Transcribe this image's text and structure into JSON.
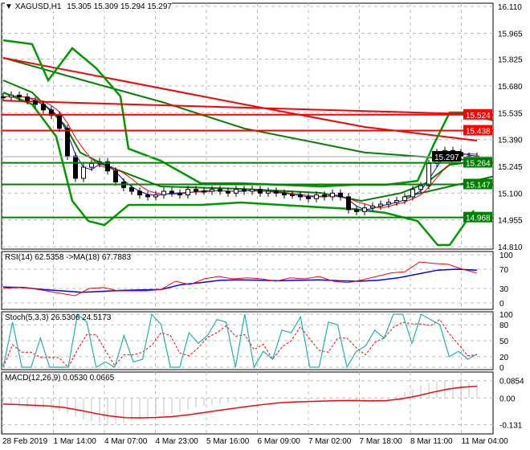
{
  "header": {
    "symbol": "XAGUSD,H1",
    "ohlc": "15.305 15.309 15.294 15.297"
  },
  "colors": {
    "bull": "#000000",
    "line_red": "#ff0000",
    "line_green": "#008000",
    "band_green": "#009900",
    "rsi_ma": "#0000ff",
    "stoch_main": "#20b2aa",
    "hist": "#c0c0c0"
  },
  "chart_data": [
    {
      "type": "candlestick",
      "ylim": [
        14.81,
        16.11
      ],
      "y_ticks": [
        "16.110",
        "15.965",
        "15.825",
        "15.680",
        "15.535",
        "15.390",
        "15.245",
        "15.100",
        "14.955",
        "14.810"
      ],
      "x_ticks": [
        "28 Feb 2019",
        "1 Mar 14:00",
        "4 Mar 07:00",
        "4 Mar 23:00",
        "5 Mar 16:00",
        "6 Mar 09:00",
        "7 Mar 02:00",
        "7 Mar 18:00",
        "8 Mar 11:00",
        "11 Mar 04:00"
      ],
      "closes": [
        15.62,
        15.63,
        15.62,
        15.6,
        15.58,
        15.55,
        15.52,
        15.45,
        15.3,
        15.18,
        15.24,
        15.26,
        15.27,
        15.22,
        15.16,
        15.13,
        15.11,
        15.09,
        15.08,
        15.09,
        15.11,
        15.1,
        15.09,
        15.12,
        15.11,
        15.11,
        15.12,
        15.11,
        15.1,
        15.12,
        15.11,
        15.12,
        15.1,
        15.11,
        15.1,
        15.09,
        15.09,
        15.08,
        15.07,
        15.09,
        15.08,
        15.1,
        15.08,
        15.01,
        15.0,
        15.02,
        15.03,
        15.04,
        15.05,
        15.06,
        15.08,
        15.12,
        15.14,
        15.26,
        15.32,
        15.33,
        15.32,
        15.3,
        15.3,
        15.297
      ],
      "current_price": "15.297",
      "levels": [
        {
          "value": "15.524",
          "color": "#ff0000"
        },
        {
          "value": "15.438",
          "color": "#ff0000"
        },
        {
          "value": "15.264",
          "color": "#008000"
        },
        {
          "value": "15.147",
          "color": "#008000"
        },
        {
          "value": "14.968",
          "color": "#008000"
        }
      ],
      "trendlines": [
        {
          "color": "#ff0000",
          "from": [
            0,
            15.6
          ],
          "to": [
            61,
            15.524
          ]
        },
        {
          "color": "#008000",
          "from": [
            50,
            15.08
          ],
          "to": [
            61,
            15.19
          ]
        }
      ],
      "ma_long_red": [
        [
          0,
          15.832
        ],
        [
          30,
          15.58
        ],
        [
          45,
          15.458
        ],
        [
          59,
          15.384
        ]
      ],
      "ma_long_green": [
        [
          0,
          15.832
        ],
        [
          10,
          15.71
        ],
        [
          20,
          15.59
        ],
        [
          30,
          15.45
        ],
        [
          45,
          15.32
        ],
        [
          59,
          15.275
        ]
      ],
      "bb_upper": [
        [
          0,
          15.927
        ],
        [
          3.6,
          15.906
        ],
        [
          5.6,
          15.71
        ],
        [
          8.6,
          15.884
        ],
        [
          11.6,
          15.775
        ],
        [
          14.6,
          15.623
        ],
        [
          15.6,
          15.34
        ],
        [
          19.6,
          15.275
        ],
        [
          24.6,
          15.153
        ],
        [
          29.6,
          15.153
        ],
        [
          34.6,
          15.145
        ],
        [
          39.6,
          15.136
        ],
        [
          43.6,
          15.145
        ],
        [
          47.6,
          15.145
        ],
        [
          51.6,
          15.166
        ],
        [
          53.6,
          15.362
        ],
        [
          55.6,
          15.536
        ],
        [
          57.6,
          15.536
        ],
        [
          61,
          15.493
        ]
      ],
      "bb_middle": [
        [
          0,
          15.71
        ],
        [
          3.6,
          15.645
        ],
        [
          7.6,
          15.471
        ],
        [
          9.6,
          15.319
        ],
        [
          12.6,
          15.253
        ],
        [
          19.6,
          15.136
        ],
        [
          29.6,
          15.123
        ],
        [
          39.6,
          15.101
        ],
        [
          44.6,
          15.058
        ],
        [
          49.6,
          15.101
        ],
        [
          52.6,
          15.153
        ],
        [
          55.6,
          15.253
        ],
        [
          59.6,
          15.275
        ]
      ],
      "bb_lower": [
        [
          0,
          15.645
        ],
        [
          3.6,
          15.58
        ],
        [
          6.6,
          15.406
        ],
        [
          8.6,
          15.058
        ],
        [
          10.6,
          14.949
        ],
        [
          12.6,
          14.927
        ],
        [
          15.6,
          15.036
        ],
        [
          19.6,
          15.036
        ],
        [
          24.6,
          15.036
        ],
        [
          29.6,
          15.049
        ],
        [
          34.6,
          15.036
        ],
        [
          39.6,
          15.023
        ],
        [
          43.6,
          15.014
        ],
        [
          47.6,
          14.993
        ],
        [
          51.6,
          14.949
        ],
        [
          54.1,
          14.819
        ],
        [
          55.6,
          14.819
        ],
        [
          58.6,
          15.006
        ]
      ]
    },
    {
      "type": "line",
      "title": "RSI(14) 62.5358  ->MA(18) 67.7883",
      "ylim": [
        0,
        100
      ],
      "y_ticks": [
        "100",
        "70",
        "30",
        "0"
      ],
      "series": [
        {
          "name": "RSI(14)",
          "values": [
            30,
            32,
            30,
            25,
            20,
            15,
            30,
            32,
            25,
            25,
            25,
            28,
            45,
            38,
            50,
            55,
            50,
            52,
            50,
            45,
            52,
            50,
            55,
            45,
            42,
            48,
            55,
            62,
            65,
            85,
            82,
            80,
            70,
            62
          ]
        },
        {
          "name": "MA(18)",
          "values": [
            33,
            32,
            28,
            25,
            22,
            24,
            26,
            27,
            28,
            38,
            42,
            47,
            48,
            47,
            46,
            47,
            48,
            46,
            45,
            47,
            52,
            60,
            68,
            70,
            68
          ]
        }
      ]
    },
    {
      "type": "line",
      "title": "Stoch(5,3,3) 26.5306 24.5173",
      "ylim": [
        0,
        100
      ],
      "y_ticks": [
        "100",
        "80",
        "50",
        "20",
        "0"
      ],
      "series": [
        {
          "name": "main",
          "values": [
            0,
            85,
            0,
            0,
            55,
            0,
            0,
            0,
            100,
            85,
            0,
            10,
            0,
            60,
            10,
            15,
            100,
            80,
            0,
            0,
            65,
            45,
            60,
            90,
            85,
            0,
            100,
            0,
            30,
            15,
            70,
            65,
            95,
            0,
            0,
            85,
            80,
            0,
            30,
            40,
            70,
            55,
            100,
            100,
            45,
            100,
            90,
            80,
            20,
            30,
            15,
            25
          ]
        }
      ]
    },
    {
      "type": "bar+line",
      "title": "MACD(12,26,9) 0.0530 0.0665",
      "ylim": [
        -0.145,
        0.1
      ],
      "y_ticks": [
        "0.0854",
        "0.00",
        "-0.131"
      ],
      "values": [
        -0.03,
        -0.04,
        -0.045,
        -0.05,
        -0.07,
        -0.1,
        -0.12,
        -0.13,
        -0.12,
        -0.1,
        -0.09,
        -0.08,
        -0.06,
        -0.04,
        -0.03,
        -0.02,
        -0.01,
        -0.005,
        0,
        -0.005,
        -0.01,
        -0.01,
        -0.005,
        -0.01,
        -0.02,
        -0.01,
        0.02,
        0.05,
        0.08,
        0.09,
        0.085,
        0.07
      ]
    }
  ]
}
